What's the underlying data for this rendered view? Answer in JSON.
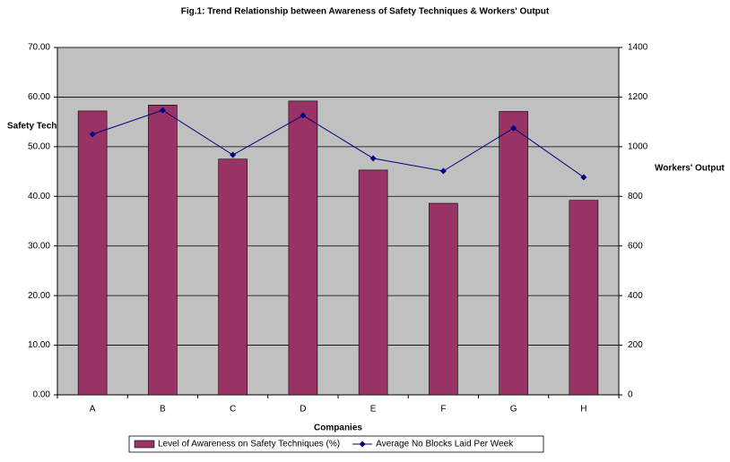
{
  "chart_data": {
    "type": "bar",
    "title": "Fig.1: Trend Relationship between Awareness of Safety Techniques & Workers' Output",
    "y_label": "Safety Techniques Awareness",
    "y2_label": "Workers' Output",
    "x_label": "Companies",
    "categories": [
      "A",
      "B",
      "C",
      "D",
      "E",
      "F",
      "G",
      "H"
    ],
    "series": [
      {
        "name": "Level of Awareness on Safety Techniques (%)",
        "type": "bar",
        "color": "#993366",
        "values": [
          57.2,
          58.4,
          47.5,
          59.2,
          45.3,
          38.6,
          57.1,
          39.2
        ]
      },
      {
        "name": "Average No Blocks Laid Per Week",
        "type": "line",
        "axis": "y2",
        "color": "#000080",
        "values": [
          1050,
          1147,
          967,
          1126,
          953,
          902,
          1075,
          877
        ]
      }
    ],
    "ylim": [
      0,
      70
    ],
    "yticks": [
      {
        "value": 0,
        "label": "0.00"
      },
      {
        "value": 10,
        "label": "10.00"
      },
      {
        "value": 20,
        "label": "20.00"
      },
      {
        "value": 30,
        "label": "30.00"
      },
      {
        "value": 40,
        "label": "40.00"
      },
      {
        "value": 50,
        "label": "50.00"
      },
      {
        "value": 60,
        "label": "60.00"
      },
      {
        "value": 70,
        "label": "70.00"
      }
    ],
    "y2lim": [
      0,
      1400
    ],
    "y2ticks": [
      0,
      200,
      400,
      600,
      800,
      1000,
      1200,
      1400
    ],
    "grid": true,
    "plot_background": "#c0c0c0",
    "legend": "bottom"
  }
}
